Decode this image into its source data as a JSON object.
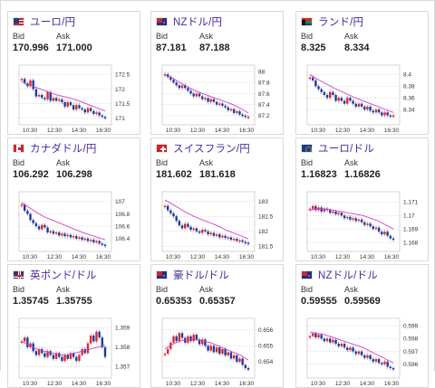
{
  "cards": [
    {
      "id": "usdjpy",
      "title": "ユーロ/円",
      "flag": "us",
      "bid": "170.996",
      "ask": "171.000",
      "ticks": [
        "172.5",
        "172",
        "171.5",
        "171"
      ],
      "yr": [
        170.9,
        172.7
      ],
      "candles": [
        172.35,
        172.2,
        172.1,
        172.3,
        172.0,
        171.75,
        171.8,
        171.7,
        171.65,
        171.9,
        171.6,
        171.7,
        171.6,
        171.65,
        171.55,
        171.4,
        171.55,
        171.45,
        171.3,
        171.45,
        171.35,
        171.3,
        171.2,
        171.35,
        171.25,
        171.15,
        171.2,
        171.1,
        171.05,
        171.0
      ],
      "ma": [
        172.25,
        172.15,
        172.05,
        171.95,
        171.85,
        171.78,
        171.72,
        171.65,
        171.55,
        171.45,
        171.35,
        171.25
      ]
    },
    {
      "id": "nzdjpy",
      "title": "NZドル/円",
      "flag": "nz",
      "bid": "87.181",
      "ask": "87.188",
      "ticks": [
        "88",
        "87.8",
        "87.6",
        "87.4",
        "87.2"
      ],
      "yr": [
        87.1,
        88.05
      ],
      "candles": [
        87.95,
        87.9,
        87.85,
        87.8,
        87.75,
        87.7,
        87.75,
        87.7,
        87.65,
        87.6,
        87.55,
        87.6,
        87.55,
        87.5,
        87.52,
        87.45,
        87.5,
        87.45,
        87.4,
        87.42,
        87.38,
        87.35,
        87.3,
        87.32,
        87.25,
        87.28,
        87.22,
        87.2,
        87.18,
        87.18
      ],
      "ma": [
        87.95,
        87.88,
        87.8,
        87.72,
        87.65,
        87.6,
        87.55,
        87.5,
        87.45,
        87.4,
        87.33,
        87.25
      ]
    },
    {
      "id": "zarjpy",
      "title": "ランド/円",
      "flag": "za",
      "bid": "8.325",
      "ask": "8.334",
      "ticks": [
        "8.4",
        "8.38",
        "8.36",
        "8.34"
      ],
      "yr": [
        8.32,
        8.41
      ],
      "candles": [
        8.395,
        8.39,
        8.38,
        8.375,
        8.37,
        8.365,
        8.36,
        8.37,
        8.365,
        8.355,
        8.36,
        8.355,
        8.35,
        8.36,
        8.355,
        8.35,
        8.345,
        8.35,
        8.345,
        8.34,
        8.345,
        8.338,
        8.335,
        8.34,
        8.335,
        8.33,
        8.335,
        8.33,
        8.328,
        8.33
      ],
      "ma": [
        8.4,
        8.392,
        8.385,
        8.378,
        8.372,
        8.366,
        8.36,
        8.355,
        8.35,
        8.345,
        8.34,
        8.335
      ]
    },
    {
      "id": "cadjpy",
      "title": "カナダドル/円",
      "flag": "ca",
      "bid": "106.292",
      "ask": "106.298",
      "ticks": [
        "107",
        "106.8",
        "106.6",
        "106.4"
      ],
      "yr": [
        106.25,
        107.1
      ],
      "candles": [
        106.95,
        106.85,
        106.8,
        106.7,
        106.65,
        106.6,
        106.55,
        106.62,
        106.58,
        106.5,
        106.52,
        106.48,
        106.5,
        106.45,
        106.48,
        106.44,
        106.46,
        106.42,
        106.44,
        106.4,
        106.42,
        106.38,
        106.4,
        106.36,
        106.38,
        106.34,
        106.36,
        106.32,
        106.3,
        106.29
      ],
      "ma": [
        106.98,
        106.9,
        106.82,
        106.75,
        106.7,
        106.65,
        106.6,
        106.55,
        106.5,
        106.46,
        106.42,
        106.38
      ]
    },
    {
      "id": "chfjpy",
      "title": "スイスフラン/円",
      "flag": "ch",
      "bid": "181.602",
      "ask": "181.618",
      "ticks": [
        "183",
        "182.5",
        "182",
        "181.5"
      ],
      "yr": [
        181.45,
        183.2
      ],
      "candles": [
        182.85,
        182.7,
        182.6,
        182.5,
        182.35,
        182.2,
        182.1,
        182.25,
        182.15,
        182.05,
        182.1,
        182.0,
        181.95,
        182.05,
        182.0,
        181.9,
        181.95,
        181.85,
        181.9,
        181.8,
        181.85,
        181.78,
        181.8,
        181.72,
        181.75,
        181.68,
        181.7,
        181.65,
        181.62,
        181.6
      ],
      "ma": [
        183.05,
        182.9,
        182.75,
        182.6,
        182.48,
        182.38,
        182.28,
        182.18,
        182.05,
        181.95,
        181.85,
        181.75
      ]
    },
    {
      "id": "eurusd",
      "title": "ユーロ/ドル",
      "flag": "eu",
      "bid": "1.16823",
      "ask": "1.16826",
      "ticks": [
        "1.171",
        "1.17",
        "1.169",
        "1.168"
      ],
      "yr": [
        1.1676,
        1.1715
      ],
      "candles": [
        1.1705,
        1.1707,
        1.1704,
        1.1706,
        1.1703,
        1.1705,
        1.1704,
        1.1702,
        1.1703,
        1.1701,
        1.1702,
        1.17,
        1.1698,
        1.1699,
        1.1697,
        1.1698,
        1.1696,
        1.1697,
        1.1695,
        1.1693,
        1.1694,
        1.1692,
        1.169,
        1.1691,
        1.1688,
        1.1686,
        1.1688,
        1.1685,
        1.1683,
        1.1682
      ],
      "ma": [
        1.1704,
        1.1705,
        1.1705,
        1.1704,
        1.1703,
        1.1702,
        1.1701,
        1.17,
        1.1698,
        1.1696,
        1.1693,
        1.169
      ]
    },
    {
      "id": "gbpusd",
      "title": "英ポンド/ドル",
      "flag": "gb",
      "bid": "1.35745",
      "ask": "1.35755",
      "ticks": [
        "1.359",
        "1.358",
        "1.357"
      ],
      "yr": [
        1.3566,
        1.3593
      ],
      "candles": [
        1.3583,
        1.3585,
        1.358,
        1.3582,
        1.3578,
        1.3576,
        1.3579,
        1.3577,
        1.3575,
        1.3578,
        1.3576,
        1.3574,
        1.3577,
        1.3575,
        1.3573,
        1.3576,
        1.3574,
        1.3577,
        1.3575,
        1.3573,
        1.3576,
        1.3579,
        1.3577,
        1.3582,
        1.3586,
        1.3583,
        1.3588,
        1.3585,
        1.358,
        1.3575
      ],
      "ma": [
        1.3583,
        1.3581,
        1.3579,
        1.3578,
        1.3577,
        1.3576,
        1.3576,
        1.3577,
        1.3578,
        1.3579,
        1.358,
        1.3581
      ]
    },
    {
      "id": "audusd",
      "title": "豪ドル/ドル",
      "flag": "au",
      "bid": "0.65353",
      "ask": "0.65357",
      "ticks": [
        "0.656",
        "0.655",
        "0.654"
      ],
      "yr": [
        0.6532,
        0.6565
      ],
      "candles": [
        0.6545,
        0.6548,
        0.6552,
        0.6556,
        0.6553,
        0.6558,
        0.6555,
        0.6552,
        0.6556,
        0.6553,
        0.6557,
        0.6554,
        0.6551,
        0.6554,
        0.655,
        0.6547,
        0.655,
        0.6546,
        0.6549,
        0.6545,
        0.6548,
        0.6544,
        0.6546,
        0.6542,
        0.6544,
        0.654,
        0.6542,
        0.6538,
        0.6536,
        0.6535
      ],
      "ma": [
        0.6548,
        0.6551,
        0.6553,
        0.6554,
        0.6554,
        0.6553,
        0.6552,
        0.655,
        0.6548,
        0.6546,
        0.6544,
        0.6541
      ]
    },
    {
      "id": "nzdusd",
      "title": "NZドル/ドル",
      "flag": "nz",
      "bid": "0.59555",
      "ask": "0.59569",
      "ticks": [
        "0.599",
        "0.598",
        "0.597",
        "0.596"
      ],
      "yr": [
        0.5952,
        0.5993
      ],
      "candles": [
        0.5982,
        0.5984,
        0.5981,
        0.5983,
        0.598,
        0.5978,
        0.598,
        0.5977,
        0.5979,
        0.5976,
        0.5974,
        0.5976,
        0.5973,
        0.5971,
        0.5973,
        0.597,
        0.5968,
        0.597,
        0.5967,
        0.5965,
        0.5967,
        0.5964,
        0.5962,
        0.5964,
        0.5961,
        0.596,
        0.5962,
        0.5958,
        0.5957,
        0.5956
      ],
      "ma": [
        0.5985,
        0.5984,
        0.5983,
        0.5981,
        0.5979,
        0.5977,
        0.5975,
        0.5973,
        0.597,
        0.5967,
        0.5964,
        0.5961
      ]
    }
  ],
  "labels": {
    "bid": "Bid",
    "ask": "Ask"
  },
  "xticks": [
    "10:30",
    "12:30",
    "14:30",
    "16:30"
  ],
  "colors": {
    "title": "#4a2a9c",
    "up": "#e0262b",
    "down": "#1f3a9a",
    "ma": "#d23cc8",
    "grid": "#999999"
  }
}
